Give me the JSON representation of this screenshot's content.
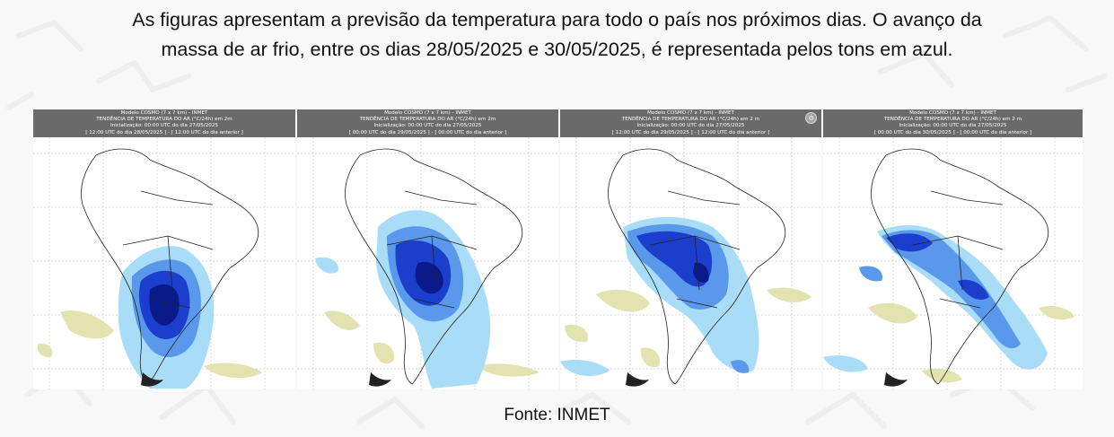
{
  "caption": {
    "line1": "As figuras apresentam a previsão da temperatura para todo o país nos próximos dias. O avanço da",
    "line2": "massa de ar frio, entre os dias 28/05/2025 e 30/05/2025, é representada pelos tons em azul."
  },
  "source": "Fonte: INMET",
  "colors": {
    "cold_light": "#a9dcf7",
    "cold_mid": "#5a98ec",
    "cold_dark": "#1b3fcc",
    "cold_darkest": "#0a1a8a",
    "warm": "#dfe0a8",
    "header_bg": "#6a6a6a"
  },
  "panels": [
    {
      "header": {
        "model": "Modelo COSMO (7 x 7 km) - INMET",
        "variable": "TENDÊNCIA DE TEMPERATURA DO AR (°C/24h) em 2m",
        "init": "Inicialização: 00:00 UTC do dia 27/05/2025",
        "valid": "[ 12:00 UTC do dia 28/05/2025 ] - [ 12:00 UTC do dia anterior ]"
      }
    },
    {
      "header": {
        "model": "Modelo COSMO (7 x 7 km) - INMET",
        "variable": "TENDÊNCIA DE TEMPERATURA DO AR (°C/24h) em 2m",
        "init": "Inicialização: 00:00 UTC do dia 27/05/2025",
        "valid": "[ 00:00 UTC do dia 29/05/2025 ] - [ 00:00 UTC do dia anterior ]"
      }
    },
    {
      "header": {
        "model": "Modelo COSMO (7 x 7 km) - INMET",
        "variable": "TENDÊNCIA DE TEMPERATURA DO AR (°C/24h) em 2 m",
        "init": "Inicialização: 00:00 UTC do dia 27/05/2025",
        "valid": "[ 12:00 UTC do dia 29/05/2025 ] - [ 12:00 UTC do dia anterior ]"
      }
    },
    {
      "header": {
        "model": "Modelo COSMO (7 x 7 km) - INMET",
        "variable": "TENDÊNCIA DE TEMPERATURA DO AR (°C/24h) em 2 m",
        "init": "Inicialização: 00:00 UTC do dia 27/05/2025",
        "valid": "[ 00:00 UTC do dia 30/05/2025 ] - [ 00:00 UTC do dia anterior ]"
      }
    }
  ]
}
